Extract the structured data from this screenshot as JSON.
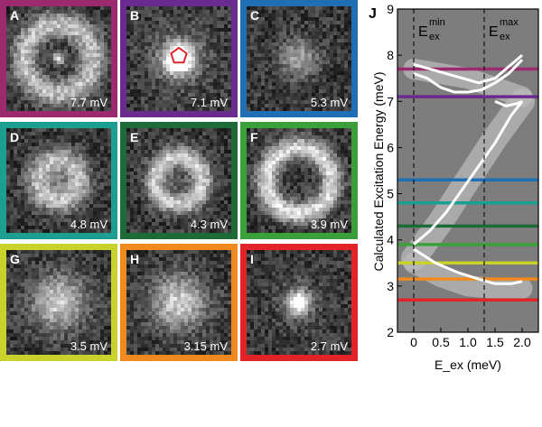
{
  "panels": [
    {
      "letter": "A",
      "voltage": "7.7 mV",
      "color": "#9b2a6e",
      "pattern": "ring-dot"
    },
    {
      "letter": "B",
      "voltage": "7.1 mV",
      "color": "#6a2a8f",
      "pattern": "bright-pentagon"
    },
    {
      "letter": "C",
      "voltage": "5.3 mV",
      "color": "#1f6fb4",
      "pattern": "faint-blob"
    },
    {
      "letter": "D",
      "voltage": "4.8 mV",
      "color": "#1d9e93",
      "pattern": "ring-blob"
    },
    {
      "letter": "E",
      "voltage": "4.3 mV",
      "color": "#1e6b3a",
      "pattern": "ring"
    },
    {
      "letter": "F",
      "voltage": "3.9 mV",
      "color": "#3ca03a",
      "pattern": "large-ring"
    },
    {
      "letter": "G",
      "voltage": "3.5 mV",
      "color": "#c9d22a",
      "pattern": "blob"
    },
    {
      "letter": "H",
      "voltage": "3.15 mV",
      "color": "#f08a1e",
      "pattern": "blob"
    },
    {
      "letter": "I",
      "voltage": "2.7 mV",
      "color": "#e2242a",
      "pattern": "small-dot"
    }
  ],
  "chart_data": {
    "type": "line",
    "panel_label": "J",
    "xlabel": "E_ex (meV)",
    "ylabel": "Calculated Excitation Energy (meV)",
    "xlim": [
      -0.3,
      2.3
    ],
    "ylim": [
      2,
      9
    ],
    "xticks": [
      "0",
      "0.5",
      "1.0",
      "1.5",
      "2.0"
    ],
    "yticks": [
      "2",
      "3",
      "4",
      "5",
      "6",
      "7",
      "8",
      "9"
    ],
    "vlines": [
      {
        "x": 0,
        "label_main": "E",
        "label_sub": "ex",
        "label_sup": "min"
      },
      {
        "x": 1.3,
        "label_main": "E",
        "label_sub": "ex",
        "label_sup": "max"
      }
    ],
    "hlines": [
      {
        "y": 7.7,
        "color": "#9b2a6e"
      },
      {
        "y": 7.1,
        "color": "#6a2a8f"
      },
      {
        "y": 5.3,
        "color": "#1f6fb4"
      },
      {
        "y": 4.8,
        "color": "#1d9e93"
      },
      {
        "y": 4.3,
        "color": "#1e6b3a"
      },
      {
        "y": 3.9,
        "color": "#3ca03a"
      },
      {
        "y": 3.5,
        "color": "#c9d22a"
      },
      {
        "y": 3.15,
        "color": "#f08a1e"
      },
      {
        "y": 2.7,
        "color": "#e2242a"
      }
    ],
    "curves": [
      {
        "x": [
          0,
          0.3,
          0.6,
          0.9,
          1.2,
          1.5,
          1.7,
          2.0
        ],
        "y": [
          7.8,
          7.7,
          7.6,
          7.5,
          7.4,
          7.5,
          7.7,
          8.0
        ]
      },
      {
        "x": [
          0,
          0.25,
          0.5,
          0.75,
          1.0,
          1.25,
          1.5,
          1.75,
          2.0
        ],
        "y": [
          7.6,
          7.5,
          7.3,
          7.2,
          7.2,
          7.25,
          7.4,
          7.6,
          7.9
        ]
      },
      {
        "x": [
          0,
          0.3,
          0.6,
          0.9,
          1.2,
          1.5,
          1.8,
          2.0
        ],
        "y": [
          3.9,
          4.2,
          4.6,
          5.1,
          5.6,
          6.1,
          6.7,
          7.0
        ]
      },
      {
        "x": [
          1.5,
          1.7,
          1.9,
          2.0
        ],
        "y": [
          7.0,
          6.9,
          6.95,
          7.0
        ]
      },
      {
        "x": [
          0,
          0.4,
          0.8,
          1.2,
          1.5,
          1.8,
          2.0
        ],
        "y": [
          3.8,
          3.5,
          3.3,
          3.15,
          3.05,
          3.05,
          3.1
        ]
      }
    ],
    "bands": [
      {
        "x": [
          0,
          0.5,
          1.0,
          1.5,
          2.0
        ],
        "y": [
          7.7,
          7.6,
          7.5,
          7.3,
          7.1
        ],
        "width": 0.45
      },
      {
        "x": [
          0,
          0.5,
          1.0,
          1.5,
          2.0
        ],
        "y": [
          3.6,
          4.4,
          5.3,
          6.2,
          7.0
        ],
        "width": 0.55
      },
      {
        "x": [
          0,
          0.5,
          1.0,
          1.5,
          2.0
        ],
        "y": [
          3.5,
          3.2,
          3.0,
          2.95,
          2.95
        ],
        "width": 0.45
      }
    ]
  }
}
